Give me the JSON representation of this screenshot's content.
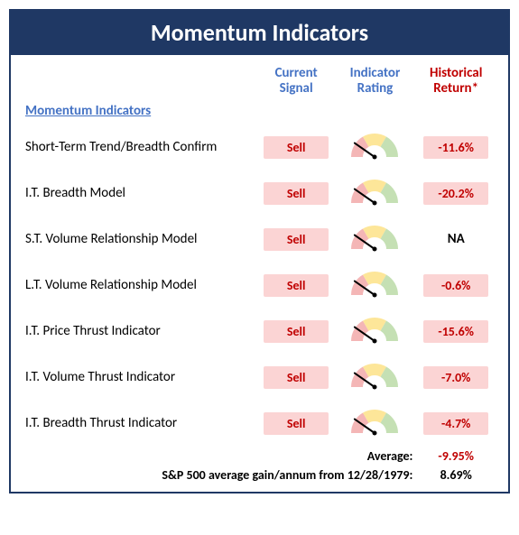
{
  "title": "Momentum Indicators",
  "columns": {
    "signal": "Current\nSignal",
    "rating": "Indicator\nRating",
    "return": "Historical\nReturn*"
  },
  "section_heading": "Momentum Indicators",
  "rows": [
    {
      "name": "Short-Term Trend/Breadth Confirm",
      "signal": "Sell",
      "needle_angle": -55,
      "return": "-11.6%",
      "return_na": false
    },
    {
      "name": "I.T. Breadth Model",
      "signal": "Sell",
      "needle_angle": -55,
      "return": "-20.2%",
      "return_na": false
    },
    {
      "name": "S.T. Volume Relationship Model",
      "signal": "Sell",
      "needle_angle": -55,
      "return": "NA",
      "return_na": true
    },
    {
      "name": "L.T. Volume Relationship Model",
      "signal": "Sell",
      "needle_angle": -55,
      "return": "-0.6%",
      "return_na": false
    },
    {
      "name": "I.T. Price Thrust Indicator",
      "signal": "Sell",
      "needle_angle": -55,
      "return": "-15.6%",
      "return_na": false
    },
    {
      "name": "I.T. Volume Thrust Indicator",
      "signal": "Sell",
      "needle_angle": -55,
      "return": "-7.0%",
      "return_na": false
    },
    {
      "name": "I.T. Breadth Thrust Indicator",
      "signal": "Sell",
      "needle_angle": -55,
      "return": "-4.7%",
      "return_na": false
    }
  ],
  "footer": {
    "average_label": "Average:",
    "average_value": "-9.95%",
    "sp_label": "S&P 500 average gain/annum from 12/28/1979:",
    "sp_value": "8.69%"
  },
  "colors": {
    "panel_border": "#1f3864",
    "title_bg": "#1f3864",
    "title_fg": "#ffffff",
    "header_fg": "#4472c4",
    "return_header_fg": "#c00000",
    "chip_bg": "#fbd4d4",
    "chip_fg": "#c00000",
    "gauge_red": "#f4b6b6",
    "gauge_yellow": "#fde699",
    "gauge_green": "#c5e0b4",
    "needle": "#000000"
  },
  "gauge": {
    "width": 62,
    "height": 34,
    "outer_r": 26,
    "inner_r": 13
  }
}
